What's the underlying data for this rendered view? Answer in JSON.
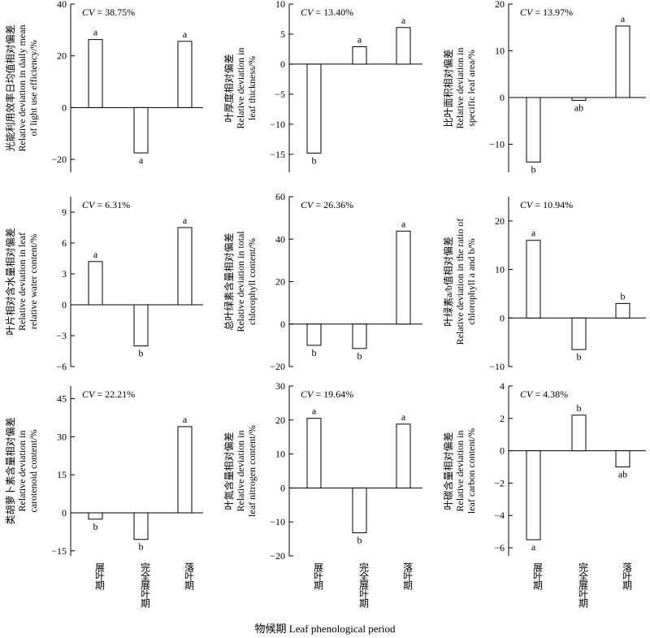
{
  "xlabel": "物候期 Leaf phenological period",
  "chart_data": [
    {
      "type": "bar",
      "categories": [
        "展叶期",
        "完全展叶期",
        "落叶期"
      ],
      "values": [
        26.3,
        -17.5,
        25.6
      ],
      "significance": [
        "a",
        "a",
        "a"
      ],
      "cv": "CV = 38.75%",
      "ylabel": [
        "光能利用效率日均值相对偏差",
        "Relative deviation in daily mean",
        "of light use efficiency/%"
      ],
      "ylim": [
        -25,
        40
      ],
      "yticks": [
        40,
        20,
        0,
        -20
      ]
    },
    {
      "type": "bar",
      "categories": [
        "展叶期",
        "完全展叶期",
        "落叶期"
      ],
      "values": [
        -14.8,
        2.9,
        6.1
      ],
      "significance": [
        "b",
        "a",
        "a"
      ],
      "cv": "CV = 13.40%",
      "ylabel": [
        "叶厚度相对偏差",
        "Relative deviation in",
        "leaf thickness/%"
      ],
      "ylim": [
        -18,
        10
      ],
      "yticks": [
        10,
        5,
        0,
        -5,
        -10,
        -15
      ]
    },
    {
      "type": "bar",
      "categories": [
        "展叶期",
        "完全展叶期",
        "落叶期"
      ],
      "values": [
        -13.8,
        -0.6,
        15.3
      ],
      "significance": [
        "b",
        "ab",
        "a"
      ],
      "cv": "CV = 13.97%",
      "ylabel": [
        "比叶面积相对偏差",
        "Relative deviation in",
        "specific leaf area/%"
      ],
      "ylim": [
        -16,
        20
      ],
      "yticks": [
        20,
        10,
        0,
        -10
      ]
    },
    {
      "type": "bar",
      "categories": [
        "展叶期",
        "完全展叶期",
        "落叶期"
      ],
      "values": [
        4.2,
        -4.0,
        7.5
      ],
      "significance": [
        "a",
        "b",
        "a"
      ],
      "cv": "CV = 6.31%",
      "ylabel": [
        "叶片相对含水量相对偏差",
        "Relative deviation in leaf",
        "relative water content/%"
      ],
      "ylim": [
        -6,
        10.5
      ],
      "yticks": [
        9,
        6,
        3,
        0,
        -3,
        -6
      ]
    },
    {
      "type": "bar",
      "categories": [
        "展叶期",
        "完全展叶期",
        "落叶期"
      ],
      "values": [
        -10.0,
        -11.5,
        43.8
      ],
      "significance": [
        "b",
        "b",
        "a"
      ],
      "cv": "CV = 26.36%",
      "ylabel": [
        "总叶绿素含量相对偏差",
        "Relative deviation in total",
        "chlorophyll content/%"
      ],
      "ylim": [
        -20,
        60
      ],
      "yticks": [
        60,
        40,
        20,
        0,
        -20
      ]
    },
    {
      "type": "bar",
      "categories": [
        "展叶期",
        "完全展叶期",
        "落叶期"
      ],
      "values": [
        16.0,
        -6.5,
        3.0
      ],
      "significance": [
        "a",
        "b",
        "b"
      ],
      "cv": "CV = 10.94%",
      "ylabel": [
        "叶绿素a/b值相对偏差",
        "Relative deviation in the ratio of",
        "chlorophyll a and b/%"
      ],
      "ylim": [
        -10,
        25
      ],
      "yticks": [
        20,
        10,
        0,
        -10
      ]
    },
    {
      "type": "bar",
      "categories": [
        "展叶期",
        "完全展叶期",
        "落叶期"
      ],
      "values": [
        -2.5,
        -10.5,
        34.0
      ],
      "significance": [
        "b",
        "b",
        "a"
      ],
      "cv": "CV = 22.21%",
      "ylabel": [
        "类胡萝卜素含量相对偏差",
        "Relative deviation in",
        "carotenoid content/%"
      ],
      "ylim": [
        -17,
        50
      ],
      "yticks": [
        45,
        30,
        15,
        0,
        -15
      ]
    },
    {
      "type": "bar",
      "categories": [
        "展叶期",
        "完全展叶期",
        "落叶期"
      ],
      "values": [
        20.5,
        -13.2,
        18.8
      ],
      "significance": [
        "a",
        "b",
        "a"
      ],
      "cv": "CV = 19.64%",
      "ylabel": [
        "叶氮含量相对偏差",
        "Relative deviation in",
        "leaf nitrogen content/%"
      ],
      "ylim": [
        -20,
        30
      ],
      "yticks": [
        30,
        20,
        10,
        0,
        -10,
        -20
      ]
    },
    {
      "type": "bar",
      "categories": [
        "展叶期",
        "完全展叶期",
        "落叶期"
      ],
      "values": [
        -5.5,
        2.2,
        -1.0
      ],
      "significance": [
        "a",
        "b",
        "ab"
      ],
      "cv": "CV = 4.38%",
      "ylabel": [
        "叶碳含量相对偏差",
        "Relative deviation in",
        "leaf carbon content/%"
      ],
      "ylim": [
        -6.5,
        4
      ],
      "yticks": [
        4,
        2,
        0,
        -2,
        -4,
        -6
      ]
    }
  ]
}
